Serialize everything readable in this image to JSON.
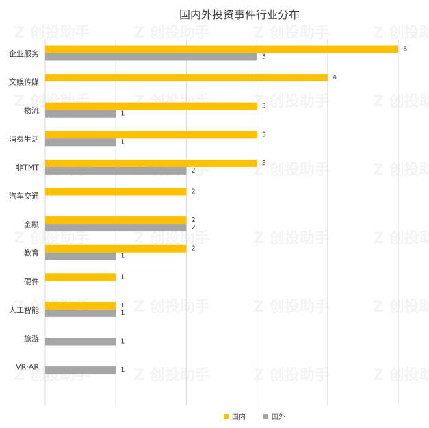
{
  "chart_data": {
    "type": "bar",
    "orientation": "horizontal",
    "title": "国内外投资事件行业分布",
    "categories": [
      "企业服务",
      "文娱传媒",
      "物流",
      "消费生活",
      "非TMT",
      "汽车交通",
      "金融",
      "教育",
      "硬件",
      "人工智能",
      "旅游",
      "VR·AR"
    ],
    "series": [
      {
        "name": "国内",
        "color": "#FFC000",
        "values": [
          5,
          4,
          3,
          3,
          3,
          2,
          2,
          2,
          1,
          1,
          null,
          null
        ]
      },
      {
        "name": "国外",
        "color": "#A5A5A5",
        "values": [
          3,
          null,
          1,
          1,
          2,
          null,
          2,
          1,
          null,
          1,
          1,
          1
        ]
      }
    ],
    "xlim": [
      0,
      5
    ],
    "grid": true,
    "legend": "bottom",
    "watermark": "创投助手"
  }
}
